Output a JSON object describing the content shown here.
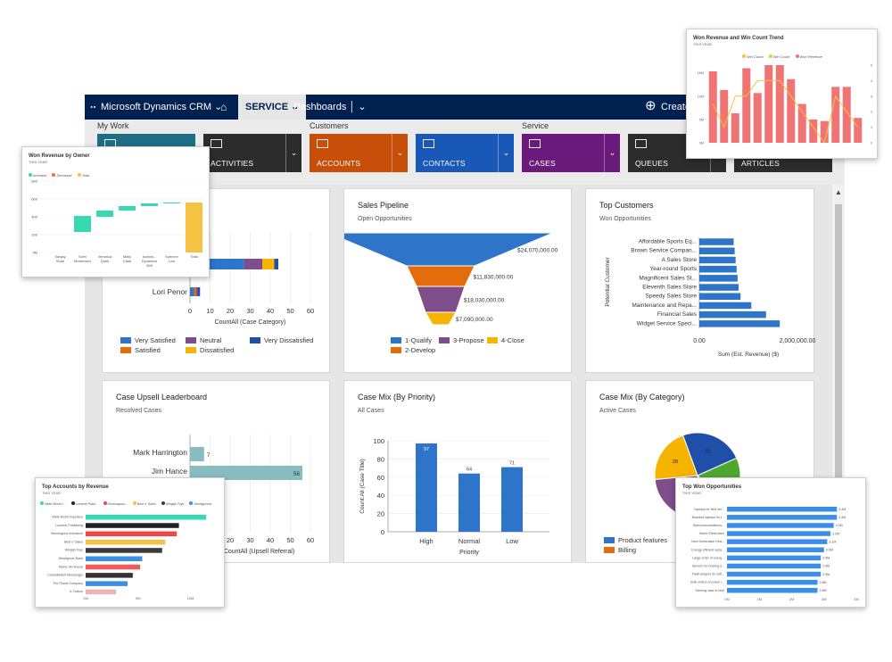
{
  "navbar": {
    "app_title": "Microsoft Dynamics CRM",
    "area": "SERVICE",
    "dashboards": "Dashboards",
    "create": "Create"
  },
  "groups": {
    "my_work": "My Work",
    "customers": "Customers",
    "service": "Service"
  },
  "tiles": {
    "activities": "ACTIVITIES",
    "accounts": "ACCOUNTS",
    "contacts": "CONTACTS",
    "cases": "CASES",
    "queues": "QUEUES",
    "articles": "ARTICLES"
  },
  "colors": {
    "navbar": "#002050",
    "tile_dashboard": "#1f6d85",
    "tile_activities": "#2c2c2c",
    "tile_accounts": "#c74f0a",
    "tile_contacts": "#1a58b7",
    "tile_cases": "#6a1a7b",
    "tile_queues": "#2c2c2c"
  },
  "chart_data": [
    {
      "type": "bar",
      "title": "",
      "orientation": "horizontal-stacked",
      "categories": [
        "",
        "Lori Penor"
      ],
      "series": [
        {
          "name": "Very Satisfied",
          "color": "#2e74c8",
          "values": [
            27,
            2
          ]
        },
        {
          "name": "Satisfied",
          "color": "#e46c0a",
          "values": [
            0,
            1
          ]
        },
        {
          "name": "Neutral",
          "color": "#7e4e8b",
          "values": [
            9,
            1
          ]
        },
        {
          "name": "Dissatisfied",
          "color": "#f6b300",
          "values": [
            6,
            0
          ]
        },
        {
          "name": "Very Dissatisfied",
          "color": "#1f4fa8",
          "values": [
            2,
            1
          ]
        }
      ],
      "xlabel": "CountAll (Case Category)",
      "xticks": [
        0,
        10,
        20,
        30,
        40,
        50,
        60
      ],
      "legend": [
        "Very Satisfied",
        "Neutral",
        "Very Dissatisfied",
        "Satisfied",
        "Dissatisfied"
      ]
    },
    {
      "type": "funnel",
      "title": "Sales Pipeline",
      "subtitle": "Open Opportunities",
      "categories": [
        "1-Qualify",
        "2-Develop",
        "3-Propose",
        "4-Close"
      ],
      "values": [
        24070000,
        11830000,
        18030000,
        7090000
      ],
      "labels": [
        "$24,070,000.00",
        "$11,830,000.00",
        "$18,030,000.00",
        "$7,090,000.00"
      ],
      "colors": [
        "#2e74c8",
        "#e46c0a",
        "#7e4e8b",
        "#f6b300"
      ]
    },
    {
      "type": "bar",
      "orientation": "horizontal",
      "title": "Top Customers",
      "subtitle": "Won Opportunities",
      "categories": [
        "Affordable Sports Eq...",
        "Brown Service Compan...",
        "A Sales Store",
        "Year-round Sports",
        "Magnificent Sales St...",
        "Eleventh Sales Store",
        "Speedy Sales Store",
        "Maintenance and Repa...",
        "Financial Sales",
        "Widget Service Speci..."
      ],
      "values": [
        700000,
        720000,
        740000,
        760000,
        780000,
        800000,
        840000,
        1060000,
        1360000,
        1640000
      ],
      "ylabel": "Potential Customer",
      "xlabel": "Sum (Est. Revenue) ($)",
      "xticks": [
        "0.00",
        "2,000,000.00"
      ],
      "xlim": [
        0,
        2000000
      ],
      "color": "#2e74c8"
    },
    {
      "type": "bar",
      "orientation": "horizontal",
      "title": "Case Upsell Leaderboard",
      "subtitle": "Resolved Cases",
      "categories": [
        "Mark Harrington",
        "Jim Hance"
      ],
      "values": [
        7,
        56
      ],
      "labels": [
        "7",
        "56"
      ],
      "xlabel": "CountAll (Upsell Referral)",
      "xticks": [
        10,
        20,
        30,
        40,
        50,
        60
      ],
      "color": "#87bcc0"
    },
    {
      "type": "bar",
      "title": "Case Mix (By Priority)",
      "subtitle": "All Cases",
      "categories": [
        "High",
        "Normal",
        "Low"
      ],
      "values": [
        97,
        64,
        71
      ],
      "ylabel": "Count:All (Case Title)",
      "xlabel": "Priority",
      "yticks": [
        0,
        20,
        40,
        60,
        80,
        100
      ],
      "ylim": [
        0,
        100
      ],
      "color": "#2e74c8"
    },
    {
      "type": "pie",
      "title": "Case Mix (By Category)",
      "subtitle": "Active Cases",
      "slices": [
        {
          "name": "Product features",
          "value": 32,
          "color": "#1f4fa8"
        },
        {
          "name": "",
          "value": 25,
          "color": "#4ea72e"
        },
        {
          "name": "",
          "value": 18,
          "color": "#e7e7e7"
        },
        {
          "name": "",
          "value": 31,
          "color": "#7e4e8b"
        },
        {
          "name": "",
          "value": 28,
          "color": "#f6b300"
        }
      ],
      "labels": [
        "32",
        "25",
        "28"
      ],
      "legend": [
        "Product features",
        "Billing"
      ]
    },
    {
      "type": "waterfall",
      "title": "Won Revenue by Owner",
      "subtitle": "THIS YEAR",
      "legend": [
        "Increase",
        "Decrease",
        "Total"
      ],
      "categories": [
        "Sanjay Shah",
        "Sven Mortensen",
        "Veronica Quek",
        "Molly Clark",
        "Admini... Dynamics 365",
        "Spencer Low",
        "Total"
      ],
      "ranges": [
        [
          0,
          0
        ],
        [
          230,
          410
        ],
        [
          400,
          470
        ],
        [
          470,
          520
        ],
        [
          520,
          550
        ],
        [
          550,
          560
        ],
        [
          0,
          560
        ]
      ],
      "yticks": [
        "0M",
        "200",
        "400",
        "600",
        "800"
      ],
      "colors": [
        "#38d9b0",
        "#38d9b0",
        "#38d9b0",
        "#38d9b0",
        "#38d9b0",
        "#38d9b0",
        "#f5c242"
      ]
    },
    {
      "type": "bar",
      "title": "Won Revenue and Win Count Trend",
      "subtitle": "THIS YEAR",
      "legend": [
        "Win Count",
        "Win Count",
        "Won Revenue"
      ],
      "values": [
        4.6,
        3.4,
        1.9,
        4.8,
        3.2,
        5.0,
        5.0,
        4.1,
        2.5,
        1.5,
        1.4,
        3.6,
        3.6,
        1.6
      ],
      "line": [
        2.5,
        1.0,
        3.0,
        3.0,
        4.0,
        4.0,
        4.0,
        3.0,
        2.0,
        1.0,
        0.0,
        3.0,
        2.0,
        1.0
      ],
      "yticks": [
        "0M",
        "5M",
        "10M",
        "15M"
      ],
      "y2ticks": [
        "0",
        "1",
        "2",
        "3",
        "4",
        "5"
      ]
    },
    {
      "type": "bar",
      "orientation": "horizontal",
      "title": "Top Accounts by Revenue",
      "subtitle": "THIS YEAR",
      "legend": [
        "Wide World I...",
        "Lucerne Publi...",
        "Humongous...",
        "Best o' Sales",
        "Wingtip Toys",
        "Woodgroves"
      ],
      "categories": [
        "Wide World Importers",
        "Lucerne Publishing",
        "Humongous Insurance",
        "Best o' Sales",
        "Wingtip Toys",
        "Woodgrove Bank",
        "Alpine Ski House",
        "Consolidated Messenger",
        "The Phone Company",
        "A. Datum"
      ],
      "values": [
        11.5,
        8.9,
        8.7,
        7.6,
        7.3,
        5.4,
        5.2,
        4.5,
        4.0,
        2.9
      ],
      "colors": [
        "#33d9b2",
        "#222222",
        "#f04646",
        "#f5c242",
        "#3a3a3a",
        "#3b8fe8",
        "#f45a5a",
        "#333333",
        "#3b8fe8",
        "#e8b4b8"
      ],
      "xticks": [
        "0M",
        "5M",
        "10M"
      ]
    },
    {
      "type": "bar",
      "orientation": "horizontal",
      "title": "Top Won Opportunities",
      "subtitle": "THIS YEAR",
      "categories": [
        "Laptops for field ser...",
        "Branded laptops for t...",
        "Telecommunications...",
        "Home Electronics",
        "Next Generation Hea...",
        "Energy efficient repla...",
        "Large order of energ...",
        "Servers for hosting a...",
        "Flash players for soft...",
        "Bulk orders of power i...",
        "Gaming case in bulk"
      ],
      "values": [
        3.4,
        3.4,
        3.3,
        3.2,
        3.1,
        3.0,
        2.9,
        2.9,
        2.9,
        2.8,
        2.8
      ],
      "labels": [
        "3.4M",
        "3.4M",
        "3.3M",
        "3.2M",
        "3.1M",
        "3.0M",
        "2.9M",
        "2.9M",
        "2.9M",
        "2.8M",
        "2.8M"
      ],
      "xticks": [
        "0M",
        "1M",
        "2M",
        "3M",
        "4M"
      ],
      "color": "#3b8fe8"
    }
  ]
}
